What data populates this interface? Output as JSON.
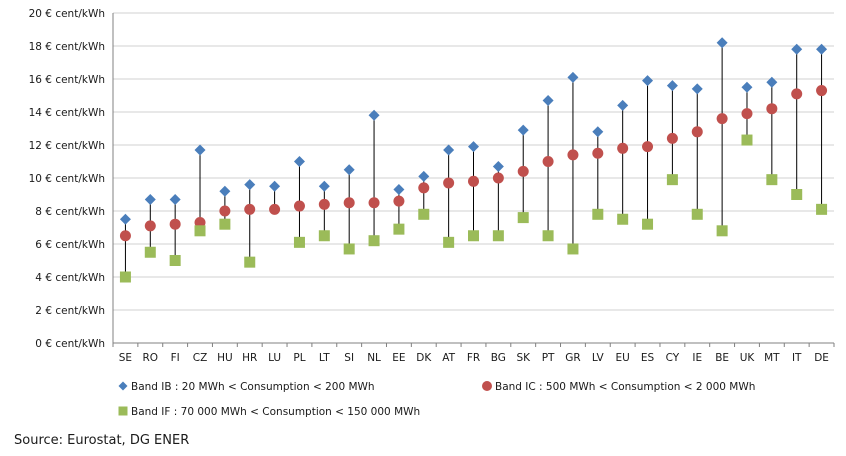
{
  "chart_data": {
    "type": "scatter",
    "y_unit": "€ cent/kWh",
    "ylim": [
      0,
      20
    ],
    "y_ticks": [
      0,
      2,
      4,
      6,
      8,
      10,
      12,
      14,
      16,
      18,
      20
    ],
    "grid": true,
    "legend_position": "bottom",
    "categories": [
      "SE",
      "RO",
      "FI",
      "CZ",
      "HU",
      "HR",
      "LU",
      "PL",
      "LT",
      "SI",
      "NL",
      "EE",
      "DK",
      "AT",
      "FR",
      "BG",
      "SK",
      "PT",
      "GR",
      "LV",
      "EU",
      "ES",
      "CY",
      "IE",
      "BE",
      "UK",
      "MT",
      "IT",
      "DE"
    ],
    "series": [
      {
        "name": "Band IB : 20 MWh < Consumption < 200 MWh",
        "marker": "diamond",
        "color": "#4a7ebb",
        "values": [
          7.5,
          8.7,
          8.7,
          11.7,
          9.2,
          9.6,
          9.5,
          11.0,
          9.5,
          10.5,
          13.8,
          9.3,
          10.1,
          11.7,
          11.9,
          10.7,
          12.9,
          14.7,
          16.1,
          12.8,
          14.4,
          15.9,
          15.6,
          15.4,
          18.2,
          15.5,
          15.8,
          17.8,
          17.8
        ]
      },
      {
        "name": "Band IC : 500 MWh < Consumption < 2 000 MWh",
        "marker": "circle",
        "color": "#c0504d",
        "values": [
          6.5,
          7.1,
          7.2,
          7.3,
          8.0,
          8.1,
          8.1,
          8.3,
          8.4,
          8.5,
          8.5,
          8.6,
          9.4,
          9.7,
          9.8,
          10.0,
          10.4,
          11.0,
          11.4,
          11.5,
          11.8,
          11.9,
          12.4,
          12.8,
          13.6,
          13.9,
          14.2,
          15.1,
          15.3
        ]
      },
      {
        "name": "Band IF : 70 000 MWh < Consumption < 150 000 MWh",
        "marker": "square",
        "color": "#9bbb59",
        "values": [
          4.0,
          5.5,
          5.0,
          6.8,
          7.2,
          4.9,
          null,
          6.1,
          6.5,
          5.7,
          6.2,
          6.9,
          7.8,
          6.1,
          6.5,
          6.5,
          7.6,
          6.5,
          5.7,
          7.8,
          7.5,
          7.2,
          9.9,
          7.8,
          6.8,
          12.3,
          9.9,
          9.0,
          8.1
        ]
      }
    ]
  },
  "source_text": "Source: Eurostat, DG ENER",
  "colors": {
    "grid": "#d0d0d0",
    "axis": "#808080",
    "range_line": "#000000"
  }
}
